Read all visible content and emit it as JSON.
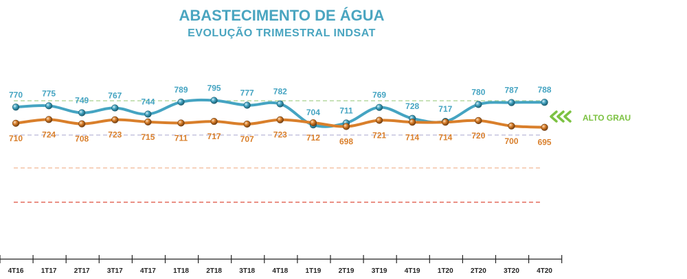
{
  "chart_data": {
    "type": "line",
    "title": "ABASTECIMENTO DE ÁGUA",
    "subtitle": "EVOLUÇÃO TRIMESTRAL INDSAT",
    "categories": [
      "4T16",
      "1T17",
      "2T17",
      "3T17",
      "4T17",
      "1T18",
      "2T18",
      "3T18",
      "4T18",
      "1T19",
      "2T19",
      "3T19",
      "4T19",
      "1T20",
      "2T20",
      "3T20",
      "4T20"
    ],
    "series": [
      {
        "values": [
          770,
          775,
          749,
          767,
          744,
          789,
          795,
          777,
          782,
          704,
          711,
          769,
          728,
          717,
          780,
          787,
          788
        ],
        "color": "#45a4c2",
        "label_position": "above"
      },
      {
        "values": [
          710,
          724,
          708,
          723,
          715,
          711,
          717,
          707,
          723,
          712,
          698,
          721,
          714,
          714,
          720,
          700,
          695
        ],
        "color": "#d97f2b",
        "label_position": "below"
      }
    ],
    "reference_lines": [
      {
        "color": "#a8d08d"
      },
      {
        "color": "#b9b6d6"
      },
      {
        "color": "#f3c4a5"
      },
      {
        "color": "#e36b5d"
      }
    ],
    "band_label": {
      "text": "ALTO GRAU",
      "color": "#7cc242"
    },
    "grid": false,
    "legend": "none"
  }
}
